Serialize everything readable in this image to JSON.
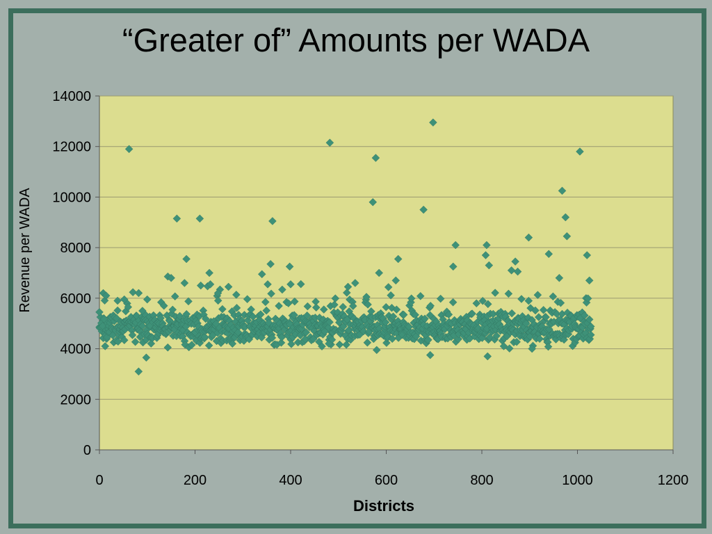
{
  "title": "“Greater of” Amounts per WADA",
  "colors": {
    "background": "#a3b0ab",
    "frame": "#3c6e5c",
    "plot_area": "#dcdd8f",
    "marker": "#3e9178"
  },
  "chart_data": {
    "type": "scatter",
    "title": "“Greater of” Amounts per WADA",
    "xlabel": "Districts",
    "ylabel": "Revenue per WADA",
    "xlim": [
      0,
      1200
    ],
    "ylim": [
      0,
      14000
    ],
    "xticks": [
      "0",
      "200",
      "400",
      "600",
      "800",
      "1000",
      "1200"
    ],
    "yticks": [
      "0",
      "2000",
      "4000",
      "6000",
      "8000",
      "10000",
      "12000",
      "14000"
    ],
    "grid": "horizontal",
    "legend": "none",
    "marker": "diamond",
    "highlighted_points": [
      {
        "x": 0,
        "y": 5450
      },
      {
        "x": 8,
        "y": 6200
      },
      {
        "x": 14,
        "y": 6100
      },
      {
        "x": 12,
        "y": 4100
      },
      {
        "x": 38,
        "y": 5900
      },
      {
        "x": 52,
        "y": 5950
      },
      {
        "x": 62,
        "y": 11900
      },
      {
        "x": 60,
        "y": 5650
      },
      {
        "x": 82,
        "y": 3100
      },
      {
        "x": 98,
        "y": 3650
      },
      {
        "x": 100,
        "y": 5950
      },
      {
        "x": 90,
        "y": 5500
      },
      {
        "x": 135,
        "y": 5700
      },
      {
        "x": 143,
        "y": 4050
      },
      {
        "x": 150,
        "y": 6800
      },
      {
        "x": 162,
        "y": 9150
      },
      {
        "x": 178,
        "y": 6600
      },
      {
        "x": 182,
        "y": 7550
      },
      {
        "x": 210,
        "y": 9150
      },
      {
        "x": 212,
        "y": 6500
      },
      {
        "x": 230,
        "y": 7000
      },
      {
        "x": 232,
        "y": 6550
      },
      {
        "x": 248,
        "y": 6200
      },
      {
        "x": 270,
        "y": 6450
      },
      {
        "x": 340,
        "y": 6950
      },
      {
        "x": 352,
        "y": 6550
      },
      {
        "x": 358,
        "y": 7350
      },
      {
        "x": 362,
        "y": 9050
      },
      {
        "x": 398,
        "y": 7250
      },
      {
        "x": 400,
        "y": 6550
      },
      {
        "x": 480,
        "y": 4200
      },
      {
        "x": 482,
        "y": 12150
      },
      {
        "x": 520,
        "y": 6450
      },
      {
        "x": 535,
        "y": 6600
      },
      {
        "x": 572,
        "y": 9800
      },
      {
        "x": 578,
        "y": 11550
      },
      {
        "x": 585,
        "y": 7000
      },
      {
        "x": 580,
        "y": 3950
      },
      {
        "x": 625,
        "y": 7550
      },
      {
        "x": 620,
        "y": 6700
      },
      {
        "x": 678,
        "y": 9500
      },
      {
        "x": 692,
        "y": 3750
      },
      {
        "x": 698,
        "y": 12950
      },
      {
        "x": 740,
        "y": 7250
      },
      {
        "x": 745,
        "y": 8100
      },
      {
        "x": 808,
        "y": 7700
      },
      {
        "x": 810,
        "y": 8100
      },
      {
        "x": 812,
        "y": 3700
      },
      {
        "x": 815,
        "y": 7300
      },
      {
        "x": 862,
        "y": 7100
      },
      {
        "x": 870,
        "y": 7450
      },
      {
        "x": 875,
        "y": 7050
      },
      {
        "x": 898,
        "y": 8400
      },
      {
        "x": 905,
        "y": 4000
      },
      {
        "x": 940,
        "y": 7750
      },
      {
        "x": 962,
        "y": 6800
      },
      {
        "x": 968,
        "y": 10250
      },
      {
        "x": 975,
        "y": 9200
      },
      {
        "x": 978,
        "y": 8450
      },
      {
        "x": 1005,
        "y": 11800
      },
      {
        "x": 1020,
        "y": 7700
      },
      {
        "x": 1025,
        "y": 6700
      },
      {
        "x": 1028,
        "y": 4550
      }
    ],
    "dense_points": {
      "n": 1028,
      "x_range": [
        0,
        1028
      ],
      "y_center": 4800,
      "y_spread": 550
    }
  }
}
